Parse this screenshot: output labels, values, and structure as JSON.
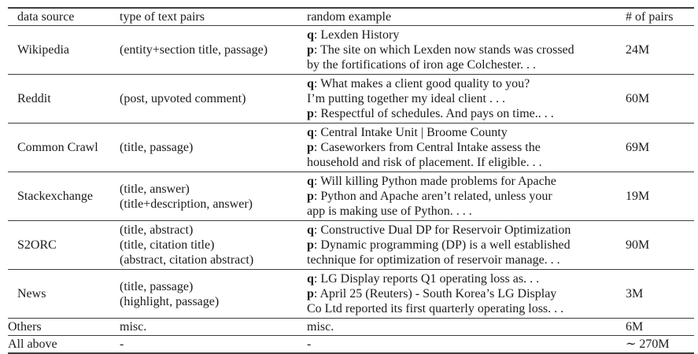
{
  "table": {
    "headers": [
      "data source",
      "type of text pairs",
      "random example",
      "# of pairs"
    ],
    "rows": [
      {
        "source": "Wikipedia",
        "types": [
          "(entity+section title, passage)"
        ],
        "example": [
          {
            "b": "q",
            "t": ": Lexden History"
          },
          {
            "b": "p",
            "t": ": The site on which Lexden now stands was crossed"
          },
          {
            "b": "",
            "t": "by the fortifications of iron age Colchester. . ."
          }
        ],
        "pairs": "24M"
      },
      {
        "source": "Reddit",
        "types": [
          "(post, upvoted comment)"
        ],
        "example": [
          {
            "b": "q",
            "t": ": What makes a client good quality to you?"
          },
          {
            "b": "",
            "t": "I’m putting together my ideal client . . ."
          },
          {
            "b": "p",
            "t": ": Respectful of schedules. And pays on time.. . ."
          }
        ],
        "pairs": "60M"
      },
      {
        "source": "Common Crawl",
        "types": [
          "(title, passage)"
        ],
        "example": [
          {
            "b": "q",
            "t": ": Central Intake Unit | Broome County"
          },
          {
            "b": "p",
            "t": ": Caseworkers from Central Intake assess the"
          },
          {
            "b": "",
            "t": "household and risk of placement. If eligible. . ."
          }
        ],
        "pairs": "69M"
      },
      {
        "source": "Stackexchange",
        "types": [
          "(title, answer)",
          "(title+description, answer)"
        ],
        "example": [
          {
            "b": "q",
            "t": ": Will killing Python made problems for Apache"
          },
          {
            "b": "p",
            "t": ": Python and Apache aren’t related, unless your"
          },
          {
            "b": "",
            "t": "app is making use of Python. . . ."
          }
        ],
        "pairs": "19M"
      },
      {
        "source": "S2ORC",
        "types": [
          "(title, abstract)",
          "(title, citation title)",
          "(abstract, citation abstract)"
        ],
        "example": [
          {
            "b": "q",
            "t": ": Constructive Dual DP for Reservoir Optimization"
          },
          {
            "b": "p",
            "t": ": Dynamic programming (DP) is a well established"
          },
          {
            "b": "",
            "t": "technique for optimization of reservoir manage. . ."
          }
        ],
        "pairs": "90M"
      },
      {
        "source": "News",
        "types": [
          "(title, passage)",
          "(highlight, passage)"
        ],
        "example": [
          {
            "b": "q",
            "t": ": LG Display reports Q1 operating loss as. . ."
          },
          {
            "b": "p",
            "t": ": April 25 (Reuters) - South Korea’s LG Display"
          },
          {
            "b": "",
            "t": "Co Ltd reported its first quarterly operating loss. . ."
          }
        ],
        "pairs": "3M"
      },
      {
        "source": "Others",
        "types": [
          "misc."
        ],
        "example": [
          {
            "b": "",
            "t": "misc."
          }
        ],
        "pairs": "6M"
      },
      {
        "source": "All above",
        "types": [
          "-"
        ],
        "example": [
          {
            "b": "",
            "t": "-"
          }
        ],
        "pairs": "∼ 270M"
      }
    ]
  }
}
